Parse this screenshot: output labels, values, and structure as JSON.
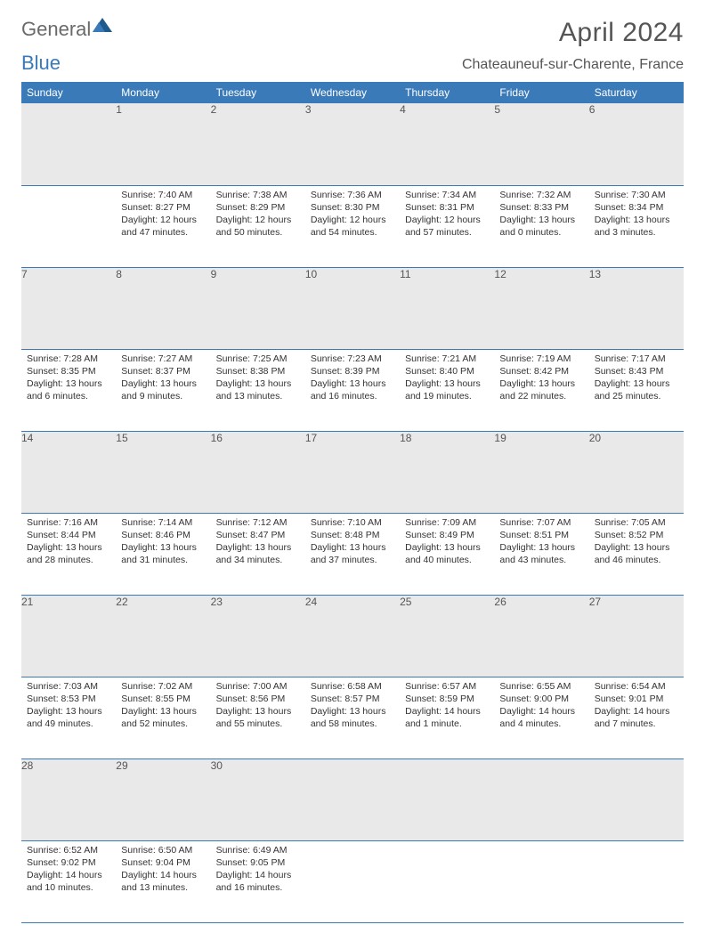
{
  "brand": {
    "part1": "General",
    "part2": "Blue"
  },
  "title": "April 2024",
  "location": "Chateauneuf-sur-Charente, France",
  "colors": {
    "accent": "#3a7ab8",
    "dayHeaderBg": "#e9e9e9",
    "text": "#333333",
    "muted": "#6a6a6a"
  },
  "days_of_week": [
    "Sunday",
    "Monday",
    "Tuesday",
    "Wednesday",
    "Thursday",
    "Friday",
    "Saturday"
  ],
  "weeks": [
    [
      null,
      {
        "n": 1,
        "sunrise": "7:40 AM",
        "sunset": "8:27 PM",
        "daylight": "12 hours and 47 minutes."
      },
      {
        "n": 2,
        "sunrise": "7:38 AM",
        "sunset": "8:29 PM",
        "daylight": "12 hours and 50 minutes."
      },
      {
        "n": 3,
        "sunrise": "7:36 AM",
        "sunset": "8:30 PM",
        "daylight": "12 hours and 54 minutes."
      },
      {
        "n": 4,
        "sunrise": "7:34 AM",
        "sunset": "8:31 PM",
        "daylight": "12 hours and 57 minutes."
      },
      {
        "n": 5,
        "sunrise": "7:32 AM",
        "sunset": "8:33 PM",
        "daylight": "13 hours and 0 minutes."
      },
      {
        "n": 6,
        "sunrise": "7:30 AM",
        "sunset": "8:34 PM",
        "daylight": "13 hours and 3 minutes."
      }
    ],
    [
      {
        "n": 7,
        "sunrise": "7:28 AM",
        "sunset": "8:35 PM",
        "daylight": "13 hours and 6 minutes."
      },
      {
        "n": 8,
        "sunrise": "7:27 AM",
        "sunset": "8:37 PM",
        "daylight": "13 hours and 9 minutes."
      },
      {
        "n": 9,
        "sunrise": "7:25 AM",
        "sunset": "8:38 PM",
        "daylight": "13 hours and 13 minutes."
      },
      {
        "n": 10,
        "sunrise": "7:23 AM",
        "sunset": "8:39 PM",
        "daylight": "13 hours and 16 minutes."
      },
      {
        "n": 11,
        "sunrise": "7:21 AM",
        "sunset": "8:40 PM",
        "daylight": "13 hours and 19 minutes."
      },
      {
        "n": 12,
        "sunrise": "7:19 AM",
        "sunset": "8:42 PM",
        "daylight": "13 hours and 22 minutes."
      },
      {
        "n": 13,
        "sunrise": "7:17 AM",
        "sunset": "8:43 PM",
        "daylight": "13 hours and 25 minutes."
      }
    ],
    [
      {
        "n": 14,
        "sunrise": "7:16 AM",
        "sunset": "8:44 PM",
        "daylight": "13 hours and 28 minutes."
      },
      {
        "n": 15,
        "sunrise": "7:14 AM",
        "sunset": "8:46 PM",
        "daylight": "13 hours and 31 minutes."
      },
      {
        "n": 16,
        "sunrise": "7:12 AM",
        "sunset": "8:47 PM",
        "daylight": "13 hours and 34 minutes."
      },
      {
        "n": 17,
        "sunrise": "7:10 AM",
        "sunset": "8:48 PM",
        "daylight": "13 hours and 37 minutes."
      },
      {
        "n": 18,
        "sunrise": "7:09 AM",
        "sunset": "8:49 PM",
        "daylight": "13 hours and 40 minutes."
      },
      {
        "n": 19,
        "sunrise": "7:07 AM",
        "sunset": "8:51 PM",
        "daylight": "13 hours and 43 minutes."
      },
      {
        "n": 20,
        "sunrise": "7:05 AM",
        "sunset": "8:52 PM",
        "daylight": "13 hours and 46 minutes."
      }
    ],
    [
      {
        "n": 21,
        "sunrise": "7:03 AM",
        "sunset": "8:53 PM",
        "daylight": "13 hours and 49 minutes."
      },
      {
        "n": 22,
        "sunrise": "7:02 AM",
        "sunset": "8:55 PM",
        "daylight": "13 hours and 52 minutes."
      },
      {
        "n": 23,
        "sunrise": "7:00 AM",
        "sunset": "8:56 PM",
        "daylight": "13 hours and 55 minutes."
      },
      {
        "n": 24,
        "sunrise": "6:58 AM",
        "sunset": "8:57 PM",
        "daylight": "13 hours and 58 minutes."
      },
      {
        "n": 25,
        "sunrise": "6:57 AM",
        "sunset": "8:59 PM",
        "daylight": "14 hours and 1 minute."
      },
      {
        "n": 26,
        "sunrise": "6:55 AM",
        "sunset": "9:00 PM",
        "daylight": "14 hours and 4 minutes."
      },
      {
        "n": 27,
        "sunrise": "6:54 AM",
        "sunset": "9:01 PM",
        "daylight": "14 hours and 7 minutes."
      }
    ],
    [
      {
        "n": 28,
        "sunrise": "6:52 AM",
        "sunset": "9:02 PM",
        "daylight": "14 hours and 10 minutes."
      },
      {
        "n": 29,
        "sunrise": "6:50 AM",
        "sunset": "9:04 PM",
        "daylight": "14 hours and 13 minutes."
      },
      {
        "n": 30,
        "sunrise": "6:49 AM",
        "sunset": "9:05 PM",
        "daylight": "14 hours and 16 minutes."
      },
      null,
      null,
      null,
      null
    ]
  ],
  "labels": {
    "sunrise": "Sunrise:",
    "sunset": "Sunset:",
    "daylight": "Daylight:"
  }
}
